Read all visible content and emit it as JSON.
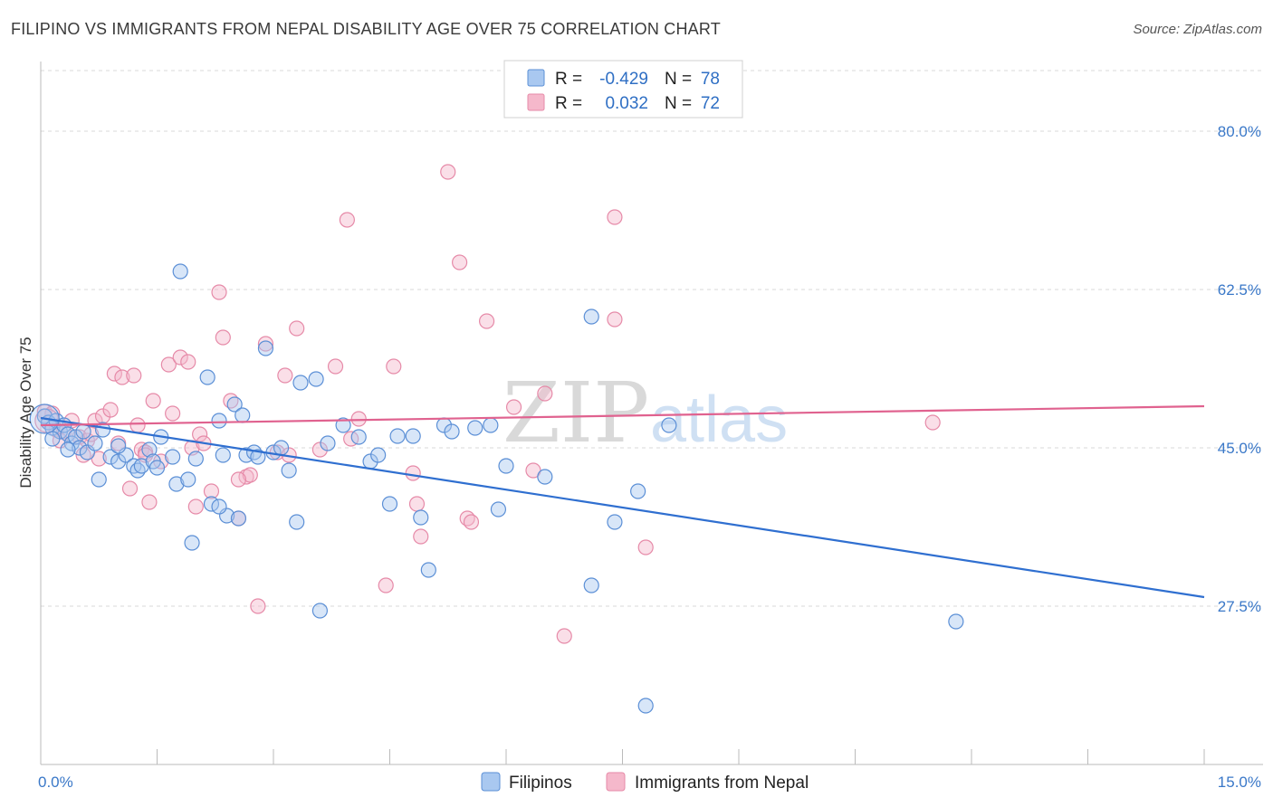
{
  "header": {
    "title": "FILIPINO VS IMMIGRANTS FROM NEPAL DISABILITY AGE OVER 75 CORRELATION CHART",
    "source": "Source: ZipAtlas.com"
  },
  "watermark": {
    "zip": "ZIP",
    "atlas": "atlas"
  },
  "colors": {
    "blue_fill": "#a9c8f0",
    "blue_stroke": "#5b8fd6",
    "blue_line": "#2f6fd0",
    "pink_fill": "#f5b8cb",
    "pink_stroke": "#e68aa8",
    "pink_line": "#e0628f",
    "grid": "#d8d8d8"
  },
  "legend": {
    "rows": [
      {
        "r_label": "R =",
        "r_value": "-0.429",
        "n_label": "N =",
        "n_value": "78"
      },
      {
        "r_label": "R =",
        "r_value": "0.032",
        "n_label": "N =",
        "n_value": "72"
      }
    ]
  },
  "chart_data": {
    "type": "scatter",
    "title": "FILIPINO VS IMMIGRANTS FROM NEPAL DISABILITY AGE OVER 75 CORRELATION CHART",
    "xlabel": "",
    "ylabel": "Disability Age Over 75",
    "xlim": [
      0,
      15
    ],
    "ylim": [
      10,
      87
    ],
    "x_ticks": [
      "0.0%",
      "15.0%"
    ],
    "y_ticks": [
      {
        "value": 80,
        "label": "80.0%"
      },
      {
        "value": 62.5,
        "label": "62.5%"
      },
      {
        "value": 45,
        "label": "45.0%"
      },
      {
        "value": 27.5,
        "label": "27.5%"
      }
    ],
    "grid": "horizontal-dashed",
    "legend_position": "top-center",
    "series": [
      {
        "name": "Filipinos",
        "trend": {
          "x": [
            0,
            15
          ],
          "y": [
            48.3,
            28.5
          ]
        },
        "points": [
          [
            0.05,
            48.5
          ],
          [
            0.1,
            47.8
          ],
          [
            0.15,
            47.2
          ],
          [
            0.2,
            48.0
          ],
          [
            0.25,
            46.8
          ],
          [
            0.3,
            47.5
          ],
          [
            0.35,
            46.5
          ],
          [
            0.4,
            45.5
          ],
          [
            0.45,
            46.2
          ],
          [
            0.5,
            45.0
          ],
          [
            0.55,
            46.8
          ],
          [
            0.6,
            44.5
          ],
          [
            0.7,
            45.5
          ],
          [
            0.75,
            41.5
          ],
          [
            0.8,
            47.0
          ],
          [
            0.9,
            44.0
          ],
          [
            1.0,
            43.5
          ],
          [
            1.1,
            44.2
          ],
          [
            1.2,
            43.0
          ],
          [
            1.25,
            42.5
          ],
          [
            1.3,
            43.0
          ],
          [
            1.4,
            44.8
          ],
          [
            1.45,
            43.5
          ],
          [
            1.5,
            42.8
          ],
          [
            1.55,
            46.2
          ],
          [
            1.7,
            44.0
          ],
          [
            1.75,
            41.0
          ],
          [
            1.9,
            41.5
          ],
          [
            1.95,
            34.5
          ],
          [
            1.8,
            64.5
          ],
          [
            2.0,
            43.8
          ],
          [
            2.15,
            52.8
          ],
          [
            2.2,
            38.8
          ],
          [
            2.3,
            48.0
          ],
          [
            2.35,
            44.2
          ],
          [
            2.4,
            37.5
          ],
          [
            2.5,
            49.8
          ],
          [
            2.55,
            37.2
          ],
          [
            2.6,
            48.6
          ],
          [
            2.65,
            44.2
          ],
          [
            2.75,
            44.5
          ],
          [
            2.8,
            44.0
          ],
          [
            2.9,
            56.0
          ],
          [
            3.0,
            44.5
          ],
          [
            3.1,
            45.0
          ],
          [
            3.2,
            42.5
          ],
          [
            3.3,
            36.8
          ],
          [
            3.35,
            52.2
          ],
          [
            3.55,
            52.6
          ],
          [
            3.6,
            27.0
          ],
          [
            3.7,
            45.5
          ],
          [
            3.9,
            47.5
          ],
          [
            4.1,
            46.2
          ],
          [
            4.25,
            43.5
          ],
          [
            4.35,
            44.2
          ],
          [
            4.5,
            38.8
          ],
          [
            4.6,
            46.3
          ],
          [
            4.8,
            46.3
          ],
          [
            4.9,
            37.3
          ],
          [
            5.0,
            31.5
          ],
          [
            5.2,
            47.5
          ],
          [
            5.3,
            46.8
          ],
          [
            5.6,
            47.2
          ],
          [
            5.8,
            47.5
          ],
          [
            5.9,
            38.2
          ],
          [
            6.0,
            43.0
          ],
          [
            6.5,
            41.8
          ],
          [
            7.1,
            59.5
          ],
          [
            7.1,
            29.8
          ],
          [
            7.4,
            36.8
          ],
          [
            7.7,
            40.2
          ],
          [
            7.8,
            16.5
          ],
          [
            8.1,
            47.5
          ],
          [
            11.8,
            25.8
          ],
          [
            0.15,
            46.0
          ],
          [
            0.35,
            44.8
          ],
          [
            1.0,
            45.2
          ],
          [
            2.3,
            38.5
          ]
        ]
      },
      {
        "name": "Immigrants from Nepal",
        "trend": {
          "x": [
            0,
            15
          ],
          "y": [
            47.5,
            49.6
          ]
        },
        "points": [
          [
            0.05,
            49.0
          ],
          [
            0.1,
            47.8
          ],
          [
            0.15,
            48.8
          ],
          [
            0.2,
            47.0
          ],
          [
            0.3,
            46.8
          ],
          [
            0.4,
            48.0
          ],
          [
            0.5,
            46.2
          ],
          [
            0.55,
            44.2
          ],
          [
            0.6,
            45.8
          ],
          [
            0.7,
            48.0
          ],
          [
            0.75,
            43.8
          ],
          [
            0.8,
            48.5
          ],
          [
            0.9,
            49.2
          ],
          [
            0.95,
            53.2
          ],
          [
            1.0,
            45.5
          ],
          [
            1.05,
            52.8
          ],
          [
            1.15,
            40.5
          ],
          [
            1.2,
            53.0
          ],
          [
            1.25,
            47.5
          ],
          [
            1.3,
            44.8
          ],
          [
            1.35,
            44.5
          ],
          [
            1.4,
            39.0
          ],
          [
            1.45,
            50.2
          ],
          [
            1.55,
            43.5
          ],
          [
            1.65,
            54.2
          ],
          [
            1.7,
            48.8
          ],
          [
            1.8,
            55.0
          ],
          [
            1.9,
            54.5
          ],
          [
            1.95,
            45.0
          ],
          [
            2.0,
            38.5
          ],
          [
            2.05,
            46.5
          ],
          [
            2.1,
            45.5
          ],
          [
            2.2,
            40.2
          ],
          [
            2.3,
            62.2
          ],
          [
            2.35,
            57.2
          ],
          [
            2.45,
            50.2
          ],
          [
            2.55,
            37.2
          ],
          [
            2.65,
            41.8
          ],
          [
            2.7,
            42.0
          ],
          [
            2.8,
            27.5
          ],
          [
            2.9,
            56.5
          ],
          [
            3.05,
            44.5
          ],
          [
            3.15,
            53.0
          ],
          [
            3.3,
            58.2
          ],
          [
            3.6,
            44.8
          ],
          [
            3.8,
            54.0
          ],
          [
            3.95,
            70.2
          ],
          [
            4.1,
            48.2
          ],
          [
            4.45,
            29.8
          ],
          [
            4.55,
            54.0
          ],
          [
            4.8,
            42.2
          ],
          [
            4.85,
            38.8
          ],
          [
            4.9,
            35.2
          ],
          [
            5.25,
            75.5
          ],
          [
            5.4,
            65.5
          ],
          [
            5.5,
            37.2
          ],
          [
            5.55,
            36.8
          ],
          [
            5.75,
            59.0
          ],
          [
            6.1,
            49.5
          ],
          [
            6.35,
            42.5
          ],
          [
            6.5,
            51.0
          ],
          [
            6.75,
            24.2
          ],
          [
            7.4,
            70.5
          ],
          [
            7.4,
            59.2
          ],
          [
            7.8,
            34.0
          ],
          [
            11.5,
            47.8
          ],
          [
            0.25,
            45.8
          ],
          [
            0.65,
            46.5
          ],
          [
            1.35,
            44.2
          ],
          [
            2.55,
            41.5
          ],
          [
            3.2,
            44.2
          ],
          [
            4.0,
            46.0
          ]
        ]
      }
    ]
  }
}
